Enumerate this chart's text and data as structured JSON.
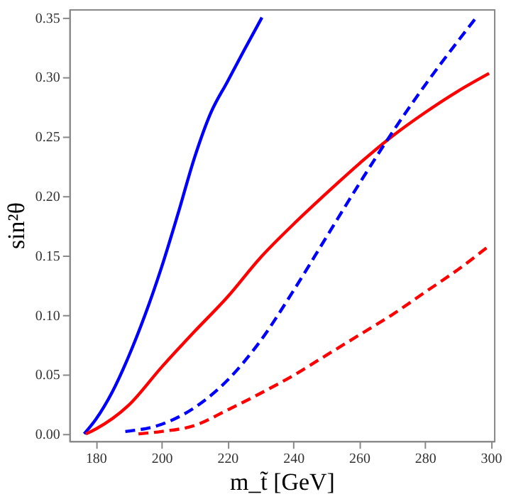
{
  "chart_data": {
    "type": "line",
    "xlabel": "m_t̃ [GeV]",
    "ylabel": "sin²θ",
    "xlim": [
      172,
      301
    ],
    "ylim": [
      -0.006,
      0.357
    ],
    "xticks": [
      180,
      200,
      220,
      240,
      260,
      280,
      300
    ],
    "yticks": [
      {
        "value": 0,
        "label": "0.00"
      },
      {
        "value": 0.05,
        "label": "0.05"
      },
      {
        "value": 0.1,
        "label": "0.10"
      },
      {
        "value": 0.15,
        "label": "0.15"
      },
      {
        "value": 0.2,
        "label": "0.20"
      },
      {
        "value": 0.25,
        "label": "0.25"
      },
      {
        "value": 0.3,
        "label": "0.30"
      },
      {
        "value": 0.35,
        "label": "0.35"
      }
    ],
    "grid": false,
    "marker": "none",
    "series": [
      {
        "color": "#0000ff",
        "line_style": "solid",
        "x": [
          176.5,
          180,
          185,
          190,
          195,
          200,
          205,
          210,
          215,
          220,
          225,
          230.5
        ],
        "values": [
          0.0,
          0.012,
          0.035,
          0.065,
          0.1,
          0.14,
          0.185,
          0.232,
          0.27,
          0.296,
          0.322,
          0.35
        ]
      },
      {
        "color": "#ff0000",
        "line_style": "solid",
        "x": [
          177,
          180,
          190,
          200,
          210,
          220,
          230,
          240,
          250,
          260,
          270,
          280,
          290,
          299.5
        ],
        "values": [
          0.0,
          0.004,
          0.024,
          0.056,
          0.086,
          0.115,
          0.148,
          0.176,
          0.202,
          0.227,
          0.25,
          0.27,
          0.288,
          0.303
        ]
      },
      {
        "color": "#0000ff",
        "line_style": "dashed",
        "x": [
          189,
          200,
          210,
          220,
          230,
          240,
          250,
          260,
          270,
          280,
          290,
          295.6
        ],
        "values": [
          0.002,
          0.008,
          0.022,
          0.045,
          0.078,
          0.12,
          0.165,
          0.21,
          0.253,
          0.293,
          0.33,
          0.35
        ]
      },
      {
        "color": "#ff0000",
        "line_style": "dashed",
        "x": [
          193,
          200,
          210,
          220,
          230,
          240,
          250,
          260,
          270,
          280,
          290,
          299.5
        ],
        "values": [
          0.0,
          0.002,
          0.007,
          0.02,
          0.034,
          0.049,
          0.066,
          0.083,
          0.1,
          0.119,
          0.138,
          0.158
        ]
      }
    ]
  }
}
